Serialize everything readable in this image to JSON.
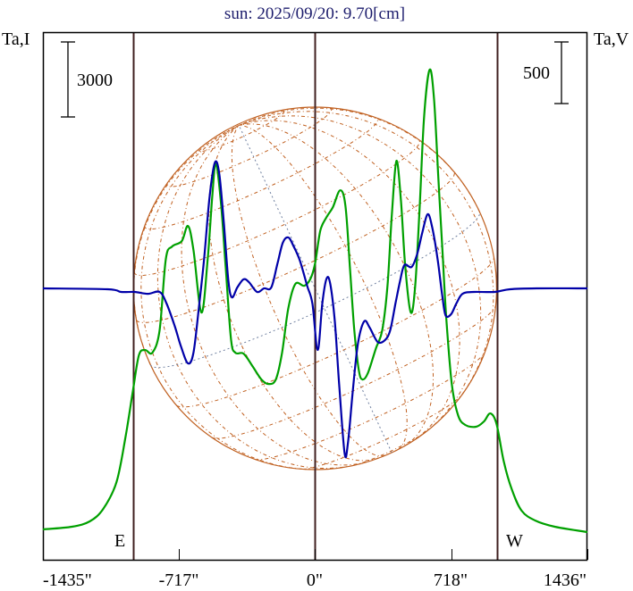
{
  "chart_data": {
    "type": "line",
    "title": "sun: 2025/09/20: 9.70[cm]",
    "left_axis_label": "Ta,I",
    "right_axis_label": "Ta,V",
    "left_scale_bar_label": "3000",
    "left_scale_bar_value": 3000,
    "right_scale_bar_label": "500",
    "right_scale_bar_value": 500,
    "xlim": [
      -1435,
      1436
    ],
    "x_ticks": [
      {
        "value": -1435,
        "label": "-1435\""
      },
      {
        "value": -717,
        "label": "-717\""
      },
      {
        "value": 0,
        "label": "0\""
      },
      {
        "value": 718,
        "label": "718\""
      },
      {
        "value": 1436,
        "label": "1436\""
      }
    ],
    "limb_markers": [
      {
        "value": -960,
        "label": "E"
      },
      {
        "value": 0,
        "label": ""
      },
      {
        "value": 960,
        "label": "W"
      }
    ],
    "solar_radius_arcsec": 957,
    "series": [
      {
        "name": "I",
        "color": "#00a000",
        "points": [
          [
            -1435,
            0
          ],
          [
            -1282,
            107
          ],
          [
            -1188,
            321
          ],
          [
            -1117,
            821
          ],
          [
            -1047,
            1892
          ],
          [
            -1000,
            3677
          ],
          [
            -962,
            5462
          ],
          [
            -929,
            6962
          ],
          [
            -896,
            7176
          ],
          [
            -858,
            7069
          ],
          [
            -820,
            7961
          ],
          [
            -787,
            10817
          ],
          [
            -754,
            11317
          ],
          [
            -703,
            11531
          ],
          [
            -670,
            12138
          ],
          [
            -641,
            11174
          ],
          [
            -599,
            8675
          ],
          [
            -566,
            10817
          ],
          [
            -542,
            13316
          ],
          [
            -523,
            14637
          ],
          [
            -495,
            12959
          ],
          [
            -471,
            10460
          ],
          [
            -443,
            7604
          ],
          [
            -420,
            7069
          ],
          [
            -377,
            7033
          ],
          [
            -330,
            6533
          ],
          [
            -283,
            5998
          ],
          [
            -245,
            5819
          ],
          [
            -207,
            5998
          ],
          [
            -174,
            7069
          ],
          [
            -141,
            8854
          ],
          [
            -104,
            9818
          ],
          [
            -57,
            9746
          ],
          [
            -24,
            10032
          ],
          [
            0,
            10639
          ],
          [
            28,
            11960
          ],
          [
            61,
            12495
          ],
          [
            94,
            12888
          ],
          [
            132,
            13566
          ],
          [
            160,
            12959
          ],
          [
            184,
            10460
          ],
          [
            207,
            7961
          ],
          [
            231,
            6355
          ],
          [
            250,
            5998
          ],
          [
            278,
            6248
          ],
          [
            321,
            7247
          ],
          [
            354,
            7961
          ],
          [
            382,
            9746
          ],
          [
            405,
            12602
          ],
          [
            429,
            14744
          ],
          [
            453,
            13138
          ],
          [
            476,
            10460
          ],
          [
            505,
            8675
          ],
          [
            528,
            9746
          ],
          [
            552,
            12959
          ],
          [
            575,
            16529
          ],
          [
            604,
            18386
          ],
          [
            627,
            17243
          ],
          [
            651,
            13923
          ],
          [
            674,
            10817
          ],
          [
            693,
            8318
          ],
          [
            721,
            5819
          ],
          [
            754,
            4570
          ],
          [
            792,
            4177
          ],
          [
            849,
            4106
          ],
          [
            891,
            4320
          ],
          [
            924,
            4641
          ],
          [
            957,
            4213
          ],
          [
            995,
            2713
          ],
          [
            1037,
            1607
          ],
          [
            1089,
            750
          ],
          [
            1160,
            357
          ],
          [
            1264,
            107
          ],
          [
            1436,
            -107
          ]
        ]
      },
      {
        "name": "V",
        "color": "#0000a8",
        "points": [
          [
            -1435,
            0
          ],
          [
            -1094,
            -7
          ],
          [
            -1023,
            -29
          ],
          [
            -952,
            -29
          ],
          [
            -882,
            -44
          ],
          [
            -820,
            -29
          ],
          [
            -783,
            -123
          ],
          [
            -740,
            -305
          ],
          [
            -707,
            -471
          ],
          [
            -670,
            -609
          ],
          [
            -641,
            -522
          ],
          [
            -613,
            -160
          ],
          [
            -585,
            239
          ],
          [
            -556,
            747
          ],
          [
            -528,
            1022
          ],
          [
            -505,
            928
          ],
          [
            -481,
            529
          ],
          [
            -457,
            58
          ],
          [
            -438,
            -73
          ],
          [
            -410,
            7
          ],
          [
            -377,
            73
          ],
          [
            -349,
            51
          ],
          [
            -306,
            -29
          ],
          [
            -269,
            0
          ],
          [
            -231,
            7
          ],
          [
            -198,
            203
          ],
          [
            -170,
            370
          ],
          [
            -141,
            413
          ],
          [
            -113,
            341
          ],
          [
            -80,
            225
          ],
          [
            -42,
            22
          ],
          [
            -14,
            -123
          ],
          [
            14,
            -500
          ],
          [
            38,
            -123
          ],
          [
            61,
            80
          ],
          [
            80,
            36
          ],
          [
            104,
            -268
          ],
          [
            127,
            -776
          ],
          [
            156,
            -1341
          ],
          [
            174,
            -1247
          ],
          [
            198,
            -848
          ],
          [
            226,
            -450
          ],
          [
            259,
            -268
          ],
          [
            288,
            -319
          ],
          [
            330,
            -435
          ],
          [
            368,
            -421
          ],
          [
            396,
            -341
          ],
          [
            424,
            -123
          ],
          [
            448,
            58
          ],
          [
            471,
            189
          ],
          [
            509,
            174
          ],
          [
            538,
            276
          ],
          [
            566,
            457
          ],
          [
            594,
            602
          ],
          [
            618,
            493
          ],
          [
            646,
            239
          ],
          [
            670,
            -51
          ],
          [
            688,
            -218
          ],
          [
            717,
            -210
          ],
          [
            745,
            -123
          ],
          [
            778,
            -44
          ],
          [
            839,
            -29
          ],
          [
            948,
            -29
          ],
          [
            1028,
            -7
          ],
          [
            1169,
            0
          ],
          [
            1436,
            0
          ]
        ]
      }
    ],
    "colors": {
      "title": "#1c1c6c",
      "limb_line": "#402020",
      "disk": "#c06020",
      "grid_alt": "#7080a0"
    }
  }
}
